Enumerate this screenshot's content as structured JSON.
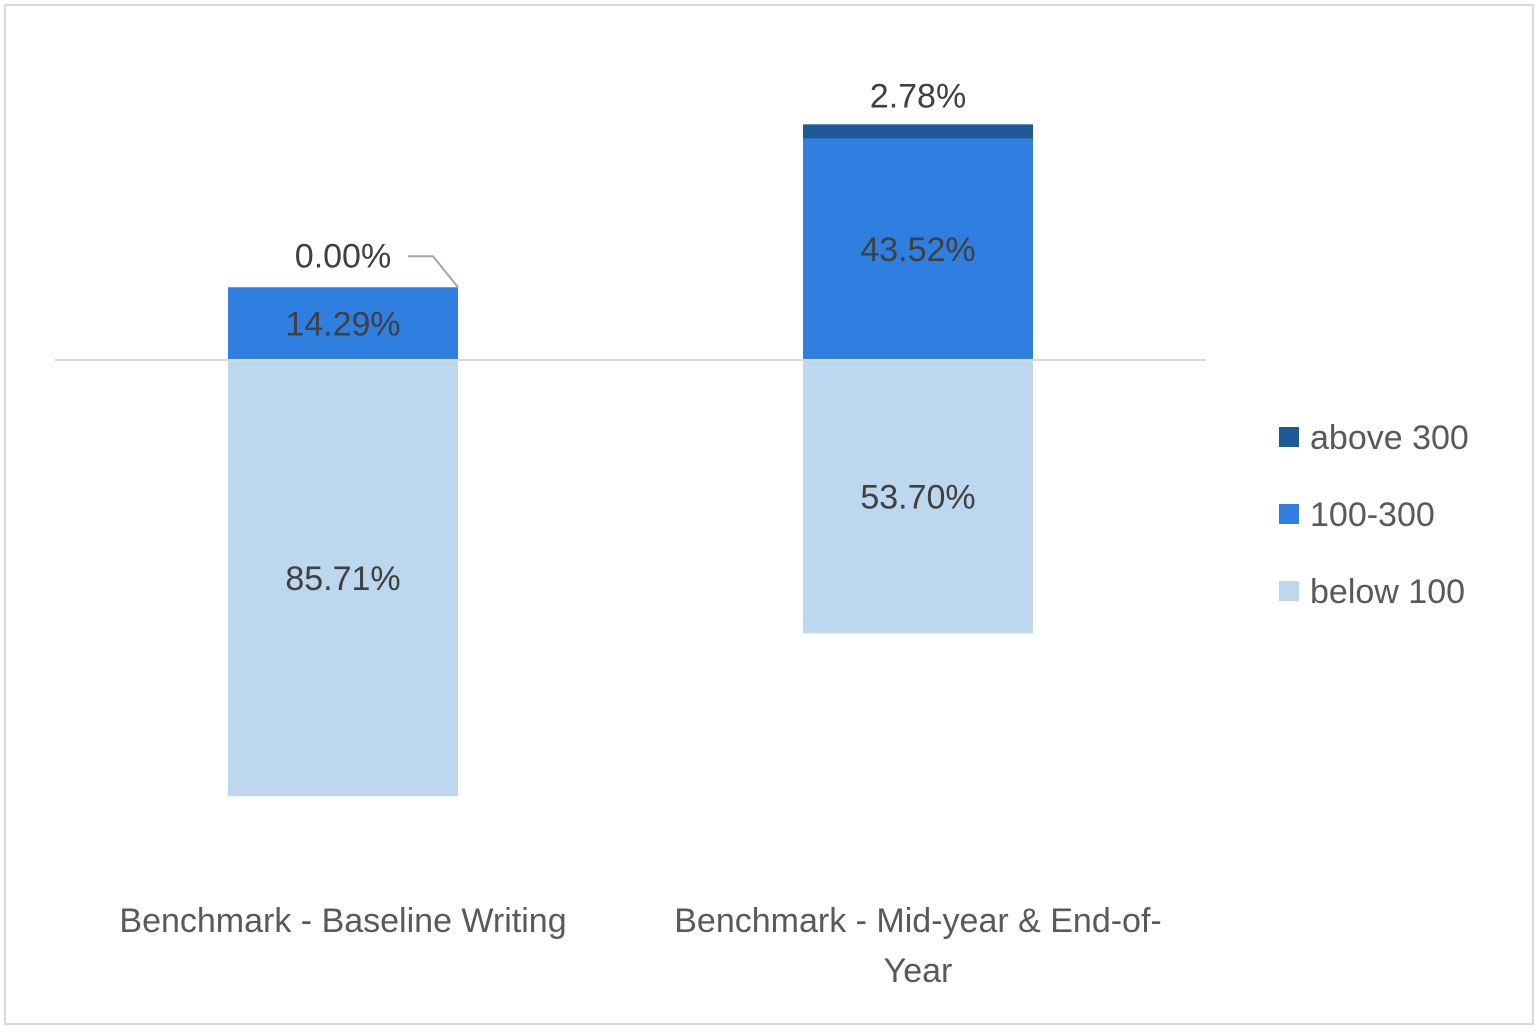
{
  "chart_data": {
    "type": "bar",
    "stacked": true,
    "categories": [
      "Benchmark - Baseline Writing",
      "Benchmark - Mid-year & End-of-Year"
    ],
    "category_label_lines": [
      [
        "Benchmark - Baseline Writing"
      ],
      [
        "Benchmark - Mid-year & End-of-",
        "Year"
      ]
    ],
    "series": [
      {
        "name": "below 100",
        "values": [
          85.71,
          53.7
        ],
        "labels": [
          "85.71%",
          "53.70%"
        ],
        "color": "#bdd7ee",
        "direction": "down"
      },
      {
        "name": "100-300",
        "values": [
          14.29,
          43.52
        ],
        "labels": [
          "14.29%",
          "43.52%"
        ],
        "color": "#2e7fe0",
        "direction": "up"
      },
      {
        "name": "above 300",
        "values": [
          0.0,
          2.78
        ],
        "labels": [
          "0.00%",
          "2.78%"
        ],
        "color": "#1f5a96",
        "direction": "up"
      }
    ],
    "legend": {
      "placement": "right",
      "order": [
        "above 300",
        "100-300",
        "below 100"
      ]
    },
    "baseline_color": "#d9d9d9",
    "grid": false,
    "axes_visible": false
  }
}
